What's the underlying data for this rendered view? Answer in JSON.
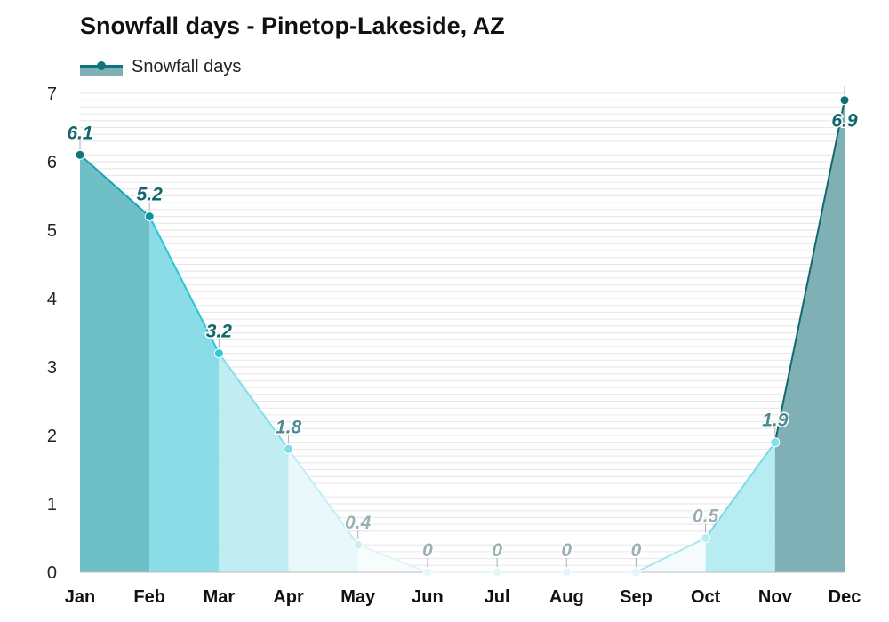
{
  "chart_data": {
    "type": "area",
    "title": "Snowfall days - Pinetop-Lakeside, AZ",
    "categories": [
      "Jan",
      "Feb",
      "Mar",
      "Apr",
      "May",
      "Jun",
      "Jul",
      "Aug",
      "Sep",
      "Oct",
      "Nov",
      "Dec"
    ],
    "series": [
      {
        "name": "Snowfall days",
        "values": [
          6.1,
          5.2,
          3.2,
          1.8,
          0.4,
          0,
          0,
          0,
          0,
          0.5,
          1.9,
          6.9
        ]
      }
    ],
    "data_labels": [
      "6.1",
      "5.2",
      "3.2",
      "1.8",
      "0.4",
      "0",
      "0",
      "0",
      "0",
      "0.5",
      "1.9",
      "6.9"
    ],
    "ylim": [
      0,
      7
    ],
    "yticks": [
      "0",
      "1",
      "2",
      "3",
      "4",
      "5",
      "6",
      "7"
    ],
    "grid": true,
    "legend_position": "top-left",
    "colors": {
      "segment_fills": [
        "#6fbfc7",
        "#8adce6",
        "#c1edf2",
        "#eaf8fb",
        "#f7fcfd",
        "#ffffff",
        "#ffffff",
        "#ffffff",
        "#f5fbfd",
        "#b8ecf3",
        "#7fb0b6"
      ],
      "segment_lines": [
        "#14a5b2",
        "#29c6d6",
        "#7fe0ec",
        "#c3edf4",
        "#dff3f8",
        "#e8f6fa",
        "#e8f6fa",
        "#e8f6fa",
        "#a9e6f0",
        "#7dd8e6",
        "#12696f"
      ],
      "point_colors": [
        "#11737b",
        "#11939f",
        "#2ec9d9",
        "#7fdbe8",
        "#cfeff5",
        "#e3f6fa",
        "#e3f6fa",
        "#e3f6fa",
        "#e3f6fa",
        "#b9ecf3",
        "#80e0ed",
        "#0f6e73"
      ],
      "label_colors": [
        "#11656c",
        "#11656c",
        "#11656c",
        "#4f8a91",
        "#9ab0b3",
        "#9ab0b3",
        "#9ab0b3",
        "#9ab0b3",
        "#9ab0b3",
        "#9ab0b3",
        "#4f8a91",
        "#11656c"
      ],
      "legend": "#11737b",
      "legend_fill": "#7fb0b6",
      "grid": "#e6e6e6"
    }
  }
}
